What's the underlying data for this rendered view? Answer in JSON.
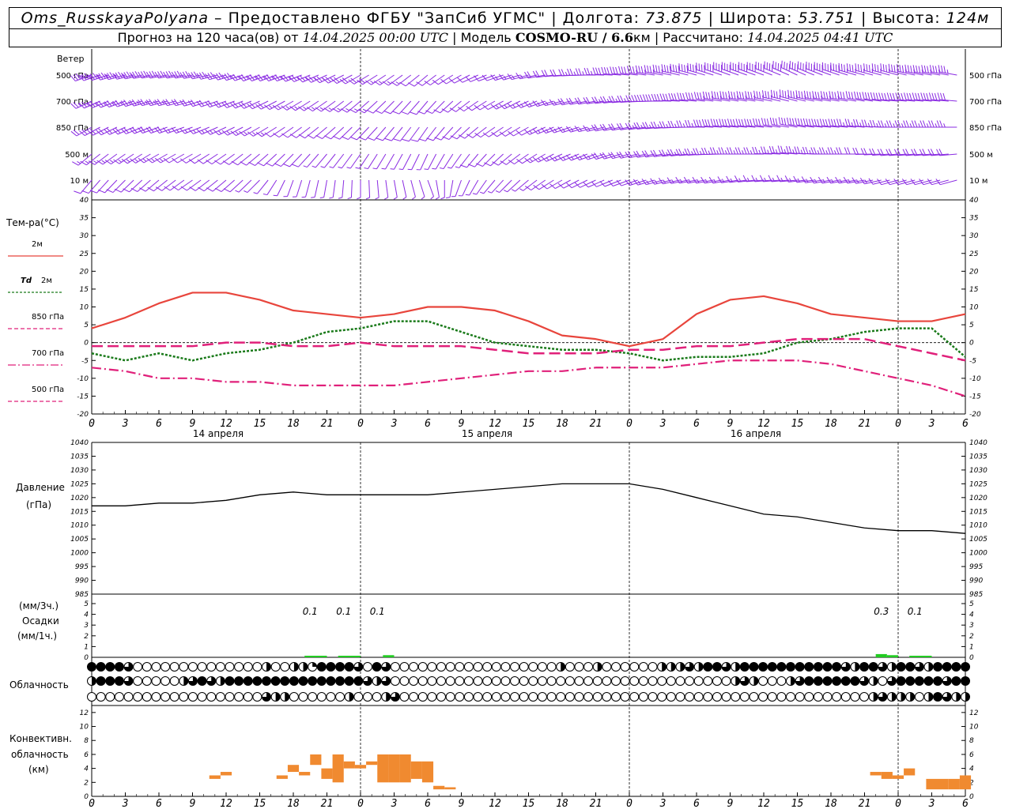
{
  "header": {
    "line1": {
      "station": "Oms_RusskayaPolyana",
      "provider": "– Предоставлено ФГБУ \"ЗапСиб УГМС\" | Долгота:",
      "lon": "73.875",
      "lat_label": "| Широта:",
      "lat": "53.751",
      "alt_label": "| Высота:",
      "alt": "124м"
    },
    "line2": {
      "forecast_prefix": "Прогноз на 120 часа(ов) от",
      "forecast_start": "14.04.2025 00:00 UTC",
      "model_label": "| Модель",
      "model": "COSMO-RU / 6.6",
      "model_unit": "км",
      "calc_label": "| Рассчитано:",
      "calc_time": "14.04.2025 04:41 UTC"
    }
  },
  "colors": {
    "t2m": "#e8453c",
    "td2m": "#1a7a1a",
    "t850": "#e0207a",
    "wind": "#8a2be2",
    "precip": "#22cc22",
    "convective": "#f08a30"
  },
  "wind_panel": {
    "title": "Ветер",
    "levels": [
      "500 гПа",
      "700 гПа",
      "850 гПа",
      "500 м",
      "10 м"
    ]
  },
  "temp_panel": {
    "title": "Тем-ра(°C)",
    "legend": [
      {
        "label": "2м",
        "bold_prefix": ""
      },
      {
        "label": "2м",
        "bold_prefix": "Td"
      },
      {
        "label": "850 гПа",
        "bold_prefix": ""
      },
      {
        "label": "700 гПа",
        "bold_prefix": ""
      },
      {
        "label": "500 гПа",
        "bold_prefix": ""
      }
    ]
  },
  "pressure_panel": {
    "title": "Давление",
    "unit": "(гПа)"
  },
  "precip_panel": {
    "unit_top": "(мм/3ч.)",
    "title": "Осадки",
    "unit_bottom": "(мм/1ч.)"
  },
  "cloud_panel": {
    "title": "Облачность"
  },
  "conv_panel": {
    "title_1": "Конвективн.",
    "title_2": "облачность",
    "unit": "(км)"
  },
  "day_labels": [
    "14 апреля",
    "15 апреля",
    "16 апреля"
  ],
  "chart_data": {
    "type": "line",
    "x_hours": [
      0,
      3,
      6,
      9,
      12,
      15,
      18,
      21,
      24,
      27,
      30,
      33,
      36,
      39,
      42,
      45,
      48,
      51,
      54,
      57,
      60,
      63,
      66,
      69,
      72,
      75,
      78
    ],
    "x_tick_labels": [
      "0",
      "3",
      "6",
      "9",
      "12",
      "15",
      "18",
      "21",
      "0",
      "3",
      "6",
      "9",
      "12",
      "15",
      "18",
      "21",
      "0",
      "3",
      "6",
      "9",
      "12",
      "15",
      "18",
      "21",
      "0",
      "3",
      "6"
    ],
    "temperature": {
      "ylim": [
        -20,
        40
      ],
      "ticks": [
        -20,
        -15,
        -10,
        -5,
        0,
        5,
        10,
        15,
        20,
        25,
        30,
        35,
        40
      ],
      "series": [
        {
          "name": "2м",
          "style": "solid",
          "values": [
            4,
            7,
            11,
            14,
            14,
            12,
            9,
            8,
            7,
            8,
            10,
            10,
            9,
            6,
            2,
            1,
            -1,
            1,
            8,
            12,
            13,
            11,
            8,
            7,
            6,
            6,
            8
          ]
        },
        {
          "name": "Td 2м",
          "style": "dotted",
          "values": [
            -3,
            -5,
            -3,
            -5,
            -3,
            -2,
            0,
            3,
            4,
            6,
            6,
            3,
            0,
            -1,
            -2,
            -2,
            -3,
            -5,
            -4,
            -4,
            -3,
            0,
            1,
            3,
            4,
            4,
            -4
          ]
        },
        {
          "name": "850 гПа",
          "style": "dashed",
          "values": [
            -1,
            -1,
            -1,
            -1,
            0,
            0,
            -1,
            -1,
            0,
            -1,
            -1,
            -1,
            -2,
            -3,
            -3,
            -3,
            -2,
            -2,
            -1,
            -1,
            0,
            1,
            1,
            1,
            -1,
            -3,
            -5
          ]
        },
        {
          "name": "700 гПа",
          "style": "dashdot",
          "values": [
            -7,
            -8,
            -10,
            -10,
            -11,
            -11,
            -12,
            -12,
            -12,
            -12,
            -11,
            -10,
            -9,
            -8,
            -8,
            -7,
            -7,
            -7,
            -6,
            -5,
            -5,
            -5,
            -6,
            -8,
            -10,
            -12,
            -15
          ]
        }
      ]
    },
    "pressure": {
      "ylim": [
        985,
        1040
      ],
      "ticks": [
        985,
        990,
        995,
        1000,
        1005,
        1010,
        1015,
        1020,
        1025,
        1030,
        1035,
        1040
      ],
      "values": [
        1017,
        1017,
        1018,
        1018,
        1019,
        1021,
        1022,
        1021,
        1021,
        1021,
        1021,
        1022,
        1023,
        1024,
        1025,
        1025,
        1025,
        1023,
        1020,
        1017,
        1014,
        1013,
        1011,
        1009,
        1008,
        1008,
        1007
      ]
    },
    "precipitation": {
      "ylim": [
        0,
        5
      ],
      "ticks": [
        0,
        1,
        2,
        3,
        4,
        5
      ],
      "labels": [
        {
          "hour": 19.5,
          "text": "0.1"
        },
        {
          "hour": 22.5,
          "text": "0.1"
        },
        {
          "hour": 25.5,
          "text": "0.1"
        },
        {
          "hour": 70.5,
          "text": "0.3"
        },
        {
          "hour": 73.5,
          "text": "0.1"
        }
      ],
      "bars": [
        {
          "start": 19,
          "end": 21,
          "value": 0.05
        },
        {
          "start": 22,
          "end": 24,
          "value": 0.1
        },
        {
          "start": 26,
          "end": 27,
          "value": 0.2
        },
        {
          "start": 70,
          "end": 71,
          "value": 0.3
        },
        {
          "start": 71,
          "end": 72,
          "value": 0.2
        },
        {
          "start": 73,
          "end": 75,
          "value": 0.1
        }
      ]
    },
    "cloudiness": {
      "rows": [
        [
          4,
          4,
          4,
          4,
          3,
          0,
          0,
          0,
          0,
          0,
          0,
          0,
          0,
          0,
          0,
          0,
          0,
          0,
          0,
          2,
          0,
          0,
          2,
          2,
          1,
          4,
          4,
          4,
          4,
          3,
          0,
          4,
          3,
          0,
          0,
          0,
          0,
          0,
          0,
          0,
          0,
          0,
          0,
          0,
          0,
          0,
          0,
          0,
          0,
          0,
          0,
          2,
          0,
          0,
          0,
          2,
          0,
          0,
          0,
          0,
          0,
          0,
          2,
          2,
          2,
          3,
          2,
          4,
          4,
          3,
          2,
          4,
          4,
          4,
          4,
          4,
          4,
          4,
          4,
          4,
          4,
          4,
          3,
          2,
          4,
          4,
          3,
          2,
          4,
          4,
          3,
          2,
          4,
          4,
          4,
          4
        ],
        [
          2,
          4,
          4,
          4,
          3,
          0,
          0,
          0,
          0,
          0,
          2,
          3,
          4,
          3,
          2,
          4,
          4,
          4,
          4,
          4,
          4,
          4,
          4,
          4,
          4,
          4,
          4,
          4,
          4,
          4,
          3,
          2,
          3,
          0,
          0,
          0,
          0,
          0,
          0,
          0,
          0,
          0,
          0,
          0,
          0,
          0,
          0,
          0,
          0,
          0,
          0,
          0,
          0,
          0,
          0,
          0,
          0,
          0,
          0,
          0,
          0,
          0,
          0,
          0,
          0,
          0,
          0,
          0,
          0,
          0,
          2,
          3,
          2,
          0,
          0,
          0,
          2,
          3,
          4,
          4,
          4,
          4,
          4,
          4,
          3,
          2,
          0,
          3,
          4,
          4,
          4,
          4,
          4,
          3,
          4,
          4
        ],
        [
          0,
          0,
          0,
          0,
          0,
          0,
          0,
          0,
          0,
          0,
          0,
          0,
          0,
          0,
          0,
          0,
          0,
          0,
          0,
          3,
          2,
          2,
          0,
          0,
          0,
          0,
          0,
          0,
          2,
          0,
          0,
          0,
          2,
          3,
          0,
          0,
          0,
          0,
          0,
          0,
          0,
          0,
          0,
          0,
          0,
          0,
          0,
          0,
          0,
          0,
          0,
          0,
          0,
          0,
          0,
          0,
          0,
          0,
          0,
          0,
          0,
          0,
          0,
          0,
          0,
          0,
          0,
          0,
          0,
          0,
          0,
          0,
          0,
          0,
          0,
          0,
          0,
          0,
          0,
          0,
          0,
          0,
          0,
          0,
          0,
          2,
          3,
          2,
          2,
          2,
          0,
          2,
          4,
          3,
          2,
          2
        ]
      ]
    },
    "convective": {
      "ylim": [
        0,
        13
      ],
      "ticks": [
        0,
        2,
        4,
        6,
        8,
        10,
        12
      ],
      "blocks": [
        {
          "h0": 10.5,
          "h1": 11.5,
          "b": 2.5,
          "t": 3.0
        },
        {
          "h0": 11.5,
          "h1": 12.5,
          "b": 3.0,
          "t": 3.5
        },
        {
          "h0": 16.5,
          "h1": 17.5,
          "b": 2.5,
          "t": 3.0
        },
        {
          "h0": 17.5,
          "h1": 18.5,
          "b": 3.5,
          "t": 4.5
        },
        {
          "h0": 18.5,
          "h1": 19.5,
          "b": 3.0,
          "t": 3.5
        },
        {
          "h0": 19.5,
          "h1": 20.5,
          "b": 4.5,
          "t": 6.0
        },
        {
          "h0": 20.5,
          "h1": 21.5,
          "b": 2.5,
          "t": 4.0
        },
        {
          "h0": 21.5,
          "h1": 22.5,
          "b": 2.0,
          "t": 6.0
        },
        {
          "h0": 22.5,
          "h1": 23.5,
          "b": 4.0,
          "t": 5.0
        },
        {
          "h0": 23.5,
          "h1": 24.5,
          "b": 4.0,
          "t": 4.5
        },
        {
          "h0": 24.5,
          "h1": 25.5,
          "b": 4.5,
          "t": 5.0
        },
        {
          "h0": 25.5,
          "h1": 26.5,
          "b": 2.0,
          "t": 6.0
        },
        {
          "h0": 26.5,
          "h1": 27.5,
          "b": 2.0,
          "t": 6.0
        },
        {
          "h0": 27.5,
          "h1": 28.5,
          "b": 2.0,
          "t": 6.0
        },
        {
          "h0": 28.5,
          "h1": 29.5,
          "b": 2.5,
          "t": 5.0
        },
        {
          "h0": 29.5,
          "h1": 30.5,
          "b": 2.0,
          "t": 5.0
        },
        {
          "h0": 30.5,
          "h1": 31.5,
          "b": 1.0,
          "t": 1.5
        },
        {
          "h0": 31.5,
          "h1": 32.5,
          "b": 1.0,
          "t": 1.3
        },
        {
          "h0": 69.5,
          "h1": 70.5,
          "b": 3.0,
          "t": 3.5
        },
        {
          "h0": 70.5,
          "h1": 71.5,
          "b": 2.5,
          "t": 3.5
        },
        {
          "h0": 71.5,
          "h1": 72.5,
          "b": 2.5,
          "t": 3.0
        },
        {
          "h0": 72.5,
          "h1": 73.5,
          "b": 3.0,
          "t": 4.0
        },
        {
          "h0": 74.5,
          "h1": 76.5,
          "b": 1.0,
          "t": 2.5
        },
        {
          "h0": 76.5,
          "h1": 77.5,
          "b": 1.0,
          "t": 2.5
        },
        {
          "h0": 77.5,
          "h1": 78.5,
          "b": 1.0,
          "t": 3.0
        }
      ]
    },
    "wind_barbs": {
      "rows": [
        {
          "level": "500 гПа",
          "dirs": [
            250,
            255,
            260,
            260,
            255,
            250,
            250,
            245,
            240,
            235,
            230,
            240,
            250,
            255,
            265,
            270,
            275,
            280,
            285,
            290,
            290,
            295,
            290,
            285,
            285,
            280,
            280
          ],
          "speeds": [
            35,
            35,
            30,
            30,
            30,
            25,
            25,
            25,
            20,
            15,
            10,
            10,
            10,
            15,
            20,
            25,
            30,
            35,
            40,
            40,
            40,
            40,
            40,
            35,
            35,
            35,
            35
          ]
        },
        {
          "level": "700 гПа",
          "dirs": [
            245,
            250,
            255,
            255,
            250,
            245,
            240,
            235,
            230,
            225,
            220,
            230,
            240,
            245,
            255,
            260,
            265,
            270,
            275,
            280,
            280,
            285,
            280,
            280,
            275,
            275,
            275
          ],
          "speeds": [
            25,
            25,
            25,
            20,
            20,
            20,
            15,
            15,
            15,
            10,
            10,
            10,
            10,
            15,
            15,
            20,
            25,
            30,
            30,
            35,
            35,
            35,
            35,
            30,
            30,
            30,
            30
          ]
        },
        {
          "level": "850 гПа",
          "dirs": [
            240,
            245,
            250,
            250,
            245,
            240,
            235,
            230,
            225,
            220,
            215,
            225,
            235,
            240,
            250,
            255,
            260,
            265,
            270,
            275,
            275,
            280,
            275,
            275,
            270,
            270,
            270
          ],
          "speeds": [
            20,
            20,
            20,
            15,
            15,
            15,
            10,
            10,
            10,
            10,
            10,
            10,
            10,
            10,
            15,
            15,
            20,
            25,
            25,
            30,
            30,
            30,
            30,
            25,
            25,
            25,
            25
          ]
        },
        {
          "level": "500 м",
          "dirs": [
            230,
            235,
            240,
            240,
            235,
            230,
            225,
            220,
            215,
            210,
            205,
            215,
            225,
            235,
            245,
            250,
            255,
            260,
            265,
            270,
            270,
            275,
            270,
            270,
            265,
            265,
            265
          ],
          "speeds": [
            15,
            15,
            15,
            10,
            10,
            10,
            10,
            5,
            5,
            5,
            5,
            5,
            10,
            10,
            15,
            15,
            20,
            20,
            25,
            25,
            25,
            25,
            25,
            20,
            20,
            20,
            20
          ]
        },
        {
          "level": "10 м",
          "dirs": [
            220,
            225,
            230,
            235,
            230,
            225,
            200,
            190,
            180,
            170,
            160,
            200,
            220,
            230,
            240,
            245,
            250,
            255,
            260,
            260,
            265,
            265,
            260,
            260,
            255,
            255,
            255
          ],
          "speeds": [
            10,
            10,
            10,
            10,
            10,
            5,
            5,
            5,
            5,
            5,
            5,
            5,
            5,
            5,
            10,
            10,
            10,
            15,
            15,
            15,
            15,
            15,
            15,
            15,
            10,
            10,
            10
          ]
        }
      ]
    }
  }
}
